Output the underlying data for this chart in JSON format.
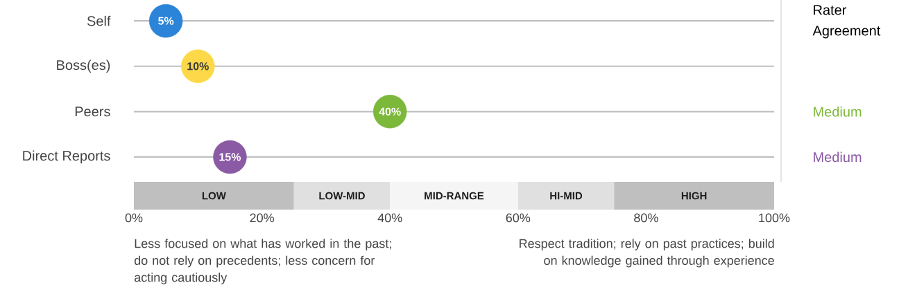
{
  "chart_data": {
    "type": "scatter",
    "orientation": "horizontal",
    "categories": [
      "Self",
      "Boss(es)",
      "Peers",
      "Direct Reports"
    ],
    "values": [
      5,
      10,
      40,
      15
    ],
    "colors": [
      "#2b84d8",
      "#fdd94a",
      "#7cb83a",
      "#8a5aa5"
    ],
    "value_labels": [
      "5%",
      "10%",
      "40%",
      "15%"
    ],
    "marker": "circle",
    "grid": "y",
    "xlim": [
      0,
      100
    ],
    "xticks": [
      {
        "value": 0,
        "label": "0%"
      },
      {
        "value": 20,
        "label": "20%"
      },
      {
        "value": 40,
        "label": "40%"
      },
      {
        "value": 60,
        "label": "60%"
      },
      {
        "value": 80,
        "label": "80%"
      },
      {
        "value": 100,
        "label": "100%"
      }
    ],
    "bands": [
      {
        "axis": "x",
        "from": 0,
        "to": 25,
        "label": "LOW",
        "color": "#bfbfbf"
      },
      {
        "axis": "x",
        "from": 25,
        "to": 40,
        "label": "LOW-MID",
        "color": "#e0e0e0"
      },
      {
        "axis": "x",
        "from": 40,
        "to": 60,
        "label": "MID-RANGE",
        "color": "#f5f5f5"
      },
      {
        "axis": "x",
        "from": 60,
        "to": 75,
        "label": "HI-MID",
        "color": "#e0e0e0"
      },
      {
        "axis": "x",
        "from": 75,
        "to": 100,
        "label": "HIGH",
        "color": "#bfbfbf"
      }
    ],
    "annotations": [
      "Rater Agreement",
      "Less focused on what has worked in the past; do not rely on precedents; less concern for acting cautiously",
      "Respect tradition; rely on past practices; build on knowledge gained through experience",
      "Medium",
      "Medium"
    ]
  }
}
